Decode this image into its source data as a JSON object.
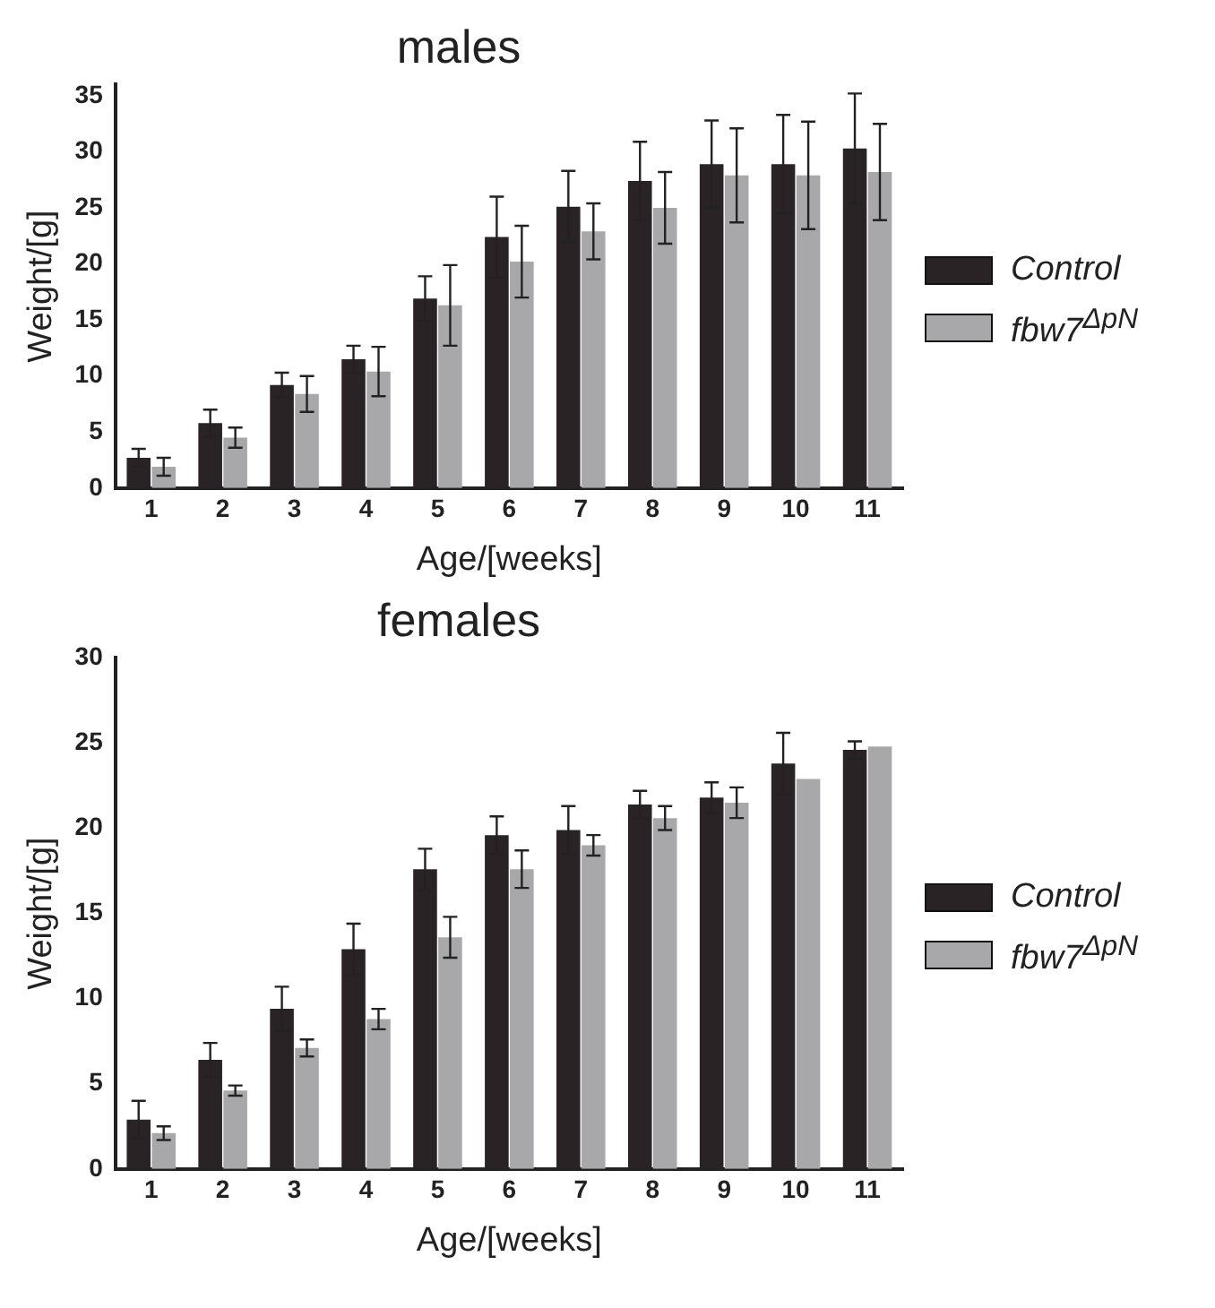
{
  "chart_data": [
    {
      "type": "bar",
      "title": "males",
      "xlabel": "Age/[weeks]",
      "ylabel": "Weight/[g]",
      "categories": [
        "1",
        "2",
        "3",
        "4",
        "5",
        "6",
        "7",
        "8",
        "9",
        "10",
        "11"
      ],
      "ylim": [
        0,
        36
      ],
      "yticks": [
        0,
        5,
        10,
        15,
        20,
        25,
        30,
        35
      ],
      "legend": "right",
      "series": [
        {
          "name": "Control",
          "color": "#2a2326",
          "values": [
            2.7,
            5.8,
            9.2,
            11.5,
            16.9,
            22.4,
            25.1,
            27.4,
            28.9,
            28.9,
            30.3
          ],
          "errors": [
            0.8,
            1.2,
            1.1,
            1.2,
            2,
            3.6,
            3.2,
            3.5,
            3.9,
            4.4,
            4.9
          ]
        },
        {
          "name": "fbw7$^{ΔpN}$",
          "color": "#a8a8aa",
          "values": [
            1.9,
            4.5,
            8.4,
            10.4,
            16.3,
            20.2,
            22.9,
            25,
            27.9,
            27.9,
            28.2
          ],
          "errors": [
            0.8,
            0.9,
            1.6,
            2.2,
            3.6,
            3.2,
            2.5,
            3.2,
            4.2,
            4.8,
            4.3
          ]
        }
      ]
    },
    {
      "type": "bar",
      "title": "females",
      "xlabel": "Age/[weeks]",
      "ylabel": "Weight/[g]",
      "categories": [
        "1",
        "2",
        "3",
        "4",
        "5",
        "6",
        "7",
        "8",
        "9",
        "10",
        "11"
      ],
      "ylim": [
        0,
        30
      ],
      "yticks": [
        0,
        5,
        10,
        15,
        20,
        25,
        30
      ],
      "legend": "right",
      "series": [
        {
          "name": "Control",
          "color": "#2a2326",
          "values": [
            2.9,
            6.4,
            9.4,
            12.9,
            17.6,
            19.6,
            19.9,
            21.4,
            21.8,
            23.8,
            24.6
          ],
          "errors": [
            1.1,
            1,
            1.3,
            1.5,
            1.2,
            1.1,
            1.4,
            0.8,
            0.9,
            1.8,
            0.5
          ]
        },
        {
          "name": "fbw7$^{ΔpN}$",
          "color": "#a8a8aa",
          "values": [
            2.1,
            4.6,
            7.1,
            8.8,
            13.6,
            17.6,
            19,
            20.6,
            21.5,
            22.9,
            24.8
          ],
          "errors": [
            0.4,
            0.3,
            0.5,
            0.6,
            1.2,
            1.1,
            0.6,
            0.7,
            0.9,
            null,
            null
          ]
        }
      ]
    }
  ]
}
